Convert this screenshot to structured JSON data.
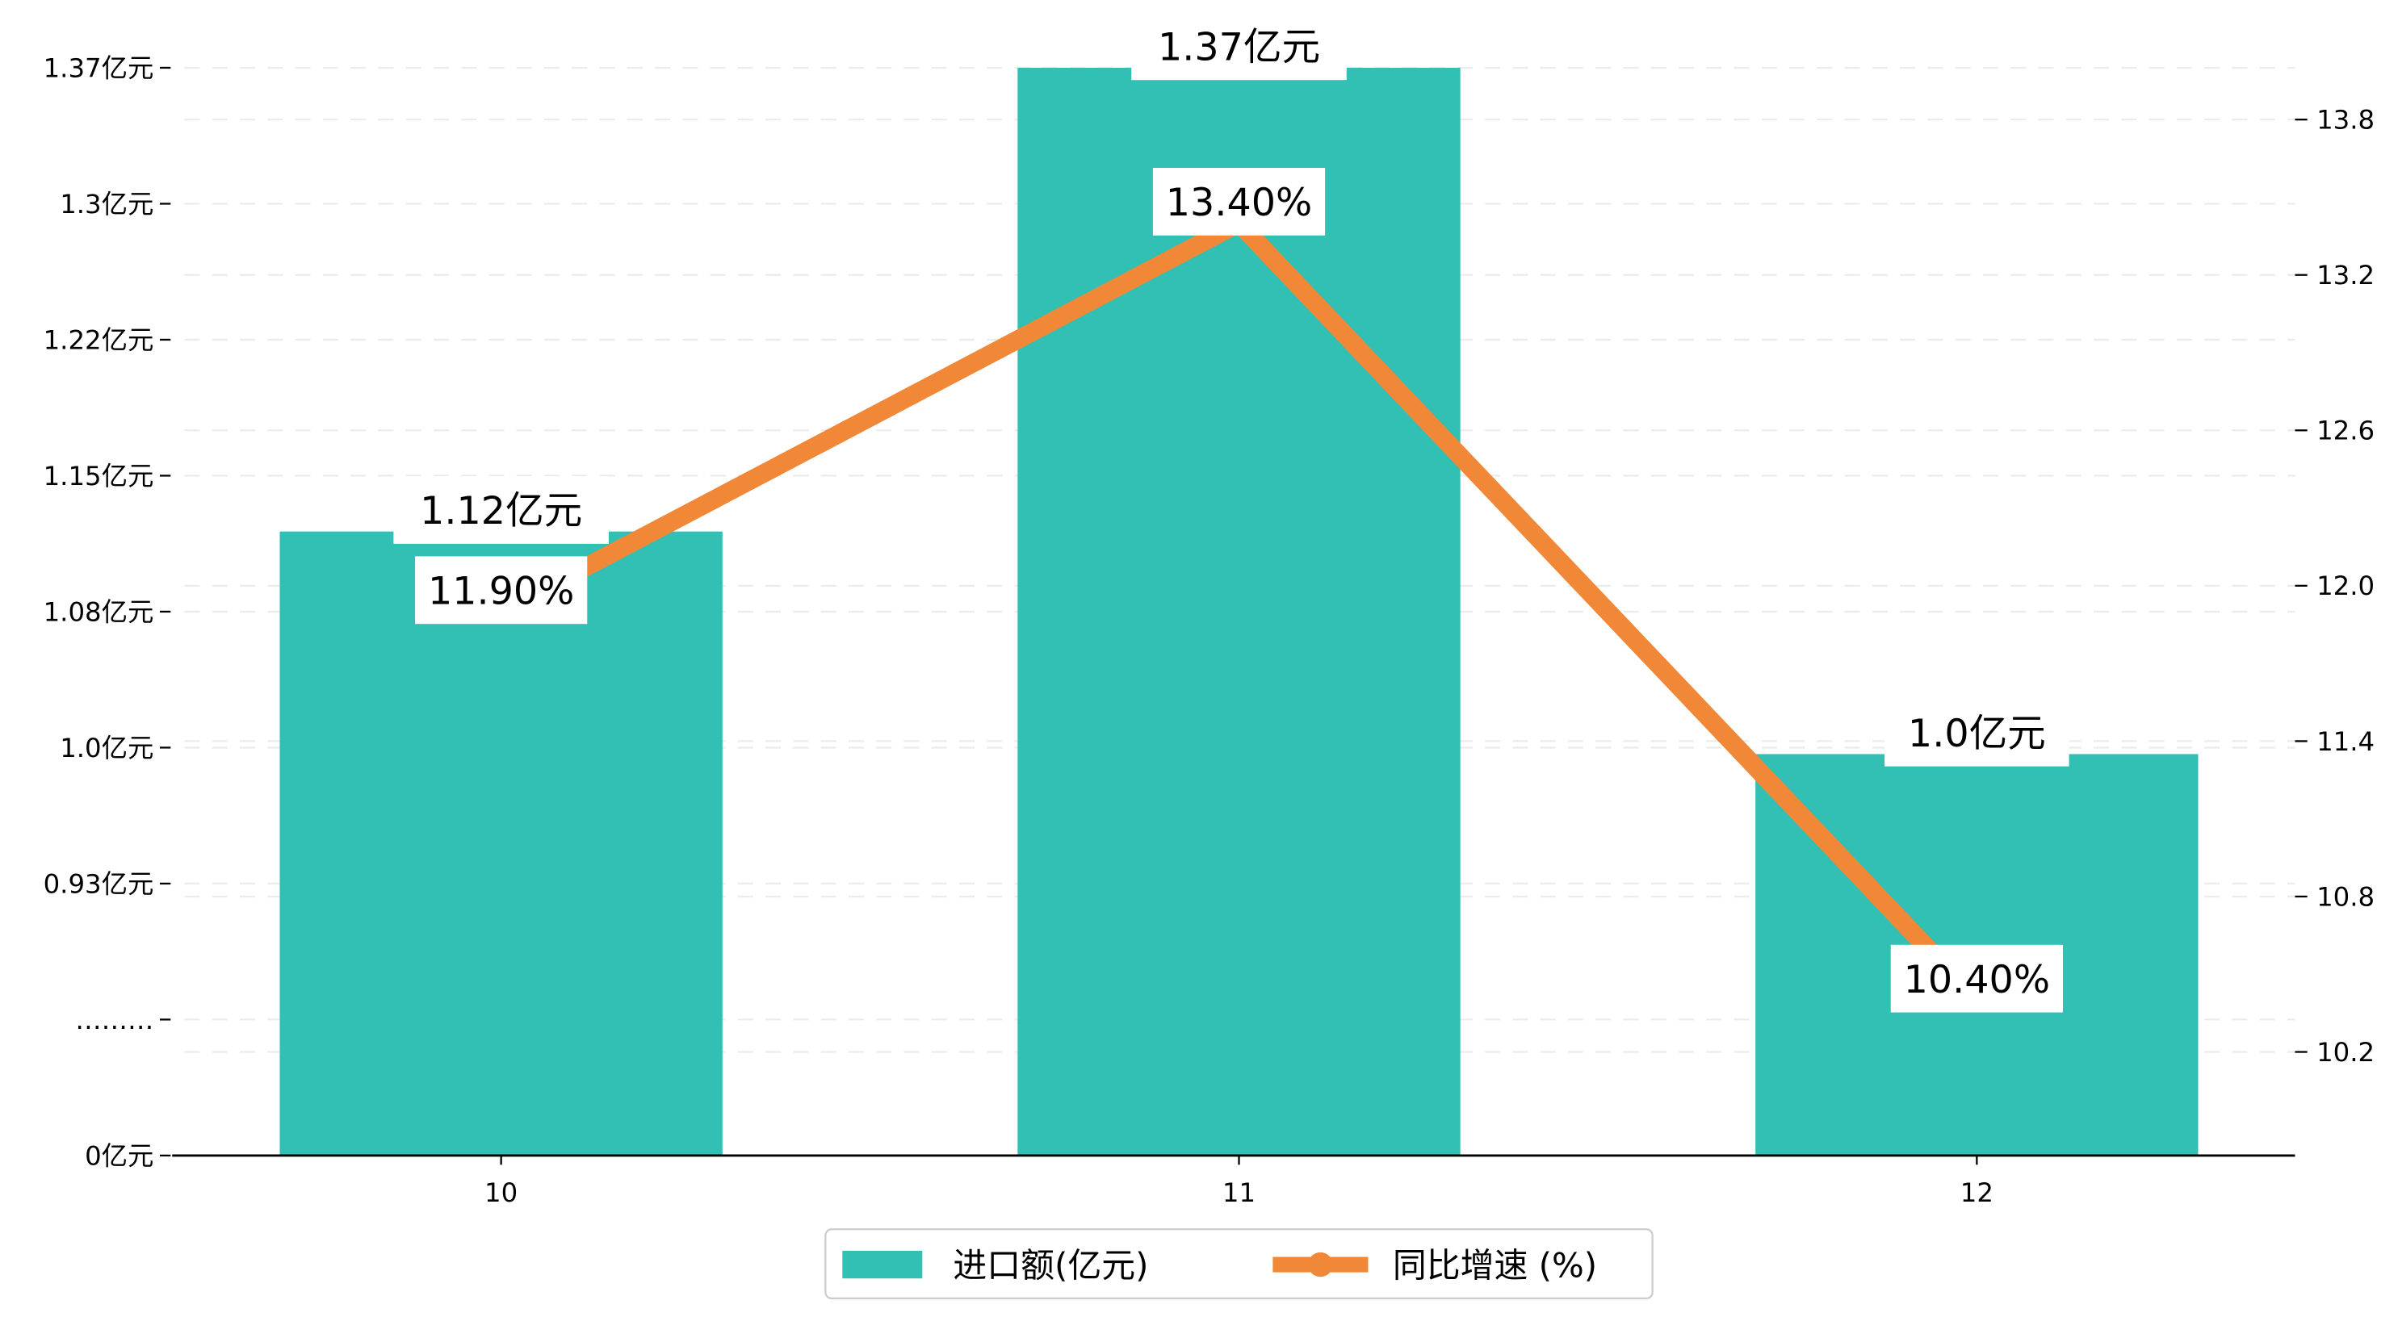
{
  "chart_data": {
    "type": "bar",
    "categories": [
      "10",
      "11",
      "12"
    ],
    "series": [
      {
        "name": "进口额(亿元)",
        "type": "bar",
        "axis": "left",
        "values": [
          1.12,
          1.37,
          1.0
        ],
        "labels": [
          "1.12亿元",
          "1.37亿元",
          "1.0亿元"
        ],
        "color": "#31c0b3"
      },
      {
        "name": "同比增速 (%)",
        "type": "line",
        "axis": "right",
        "values": [
          11.9,
          13.4,
          10.4
        ],
        "labels": [
          "11.90%",
          "13.40%",
          "10.40%"
        ],
        "color": "#f08838"
      }
    ],
    "left_axis": {
      "tick_labels": [
        "1.37亿元",
        "1.3亿元",
        "1.22亿元",
        "1.15亿元",
        "1.08亿元",
        "1.0亿元",
        "0.93亿元",
        "………",
        "0亿元"
      ],
      "top": 1.37,
      "step": 0.0733
    },
    "right_axis": {
      "ticks": [
        10.2,
        10.8,
        11.4,
        12.0,
        12.6,
        13.2,
        13.8
      ],
      "tick_labels": [
        "10.2",
        "10.8",
        "11.4",
        "12.0",
        "12.6",
        "13.2",
        "13.8"
      ],
      "ylim": [
        9.8,
        14.0
      ]
    },
    "grid": true,
    "legend_position": "bottom-center",
    "title": "",
    "xlabel": "",
    "ylabel": ""
  }
}
